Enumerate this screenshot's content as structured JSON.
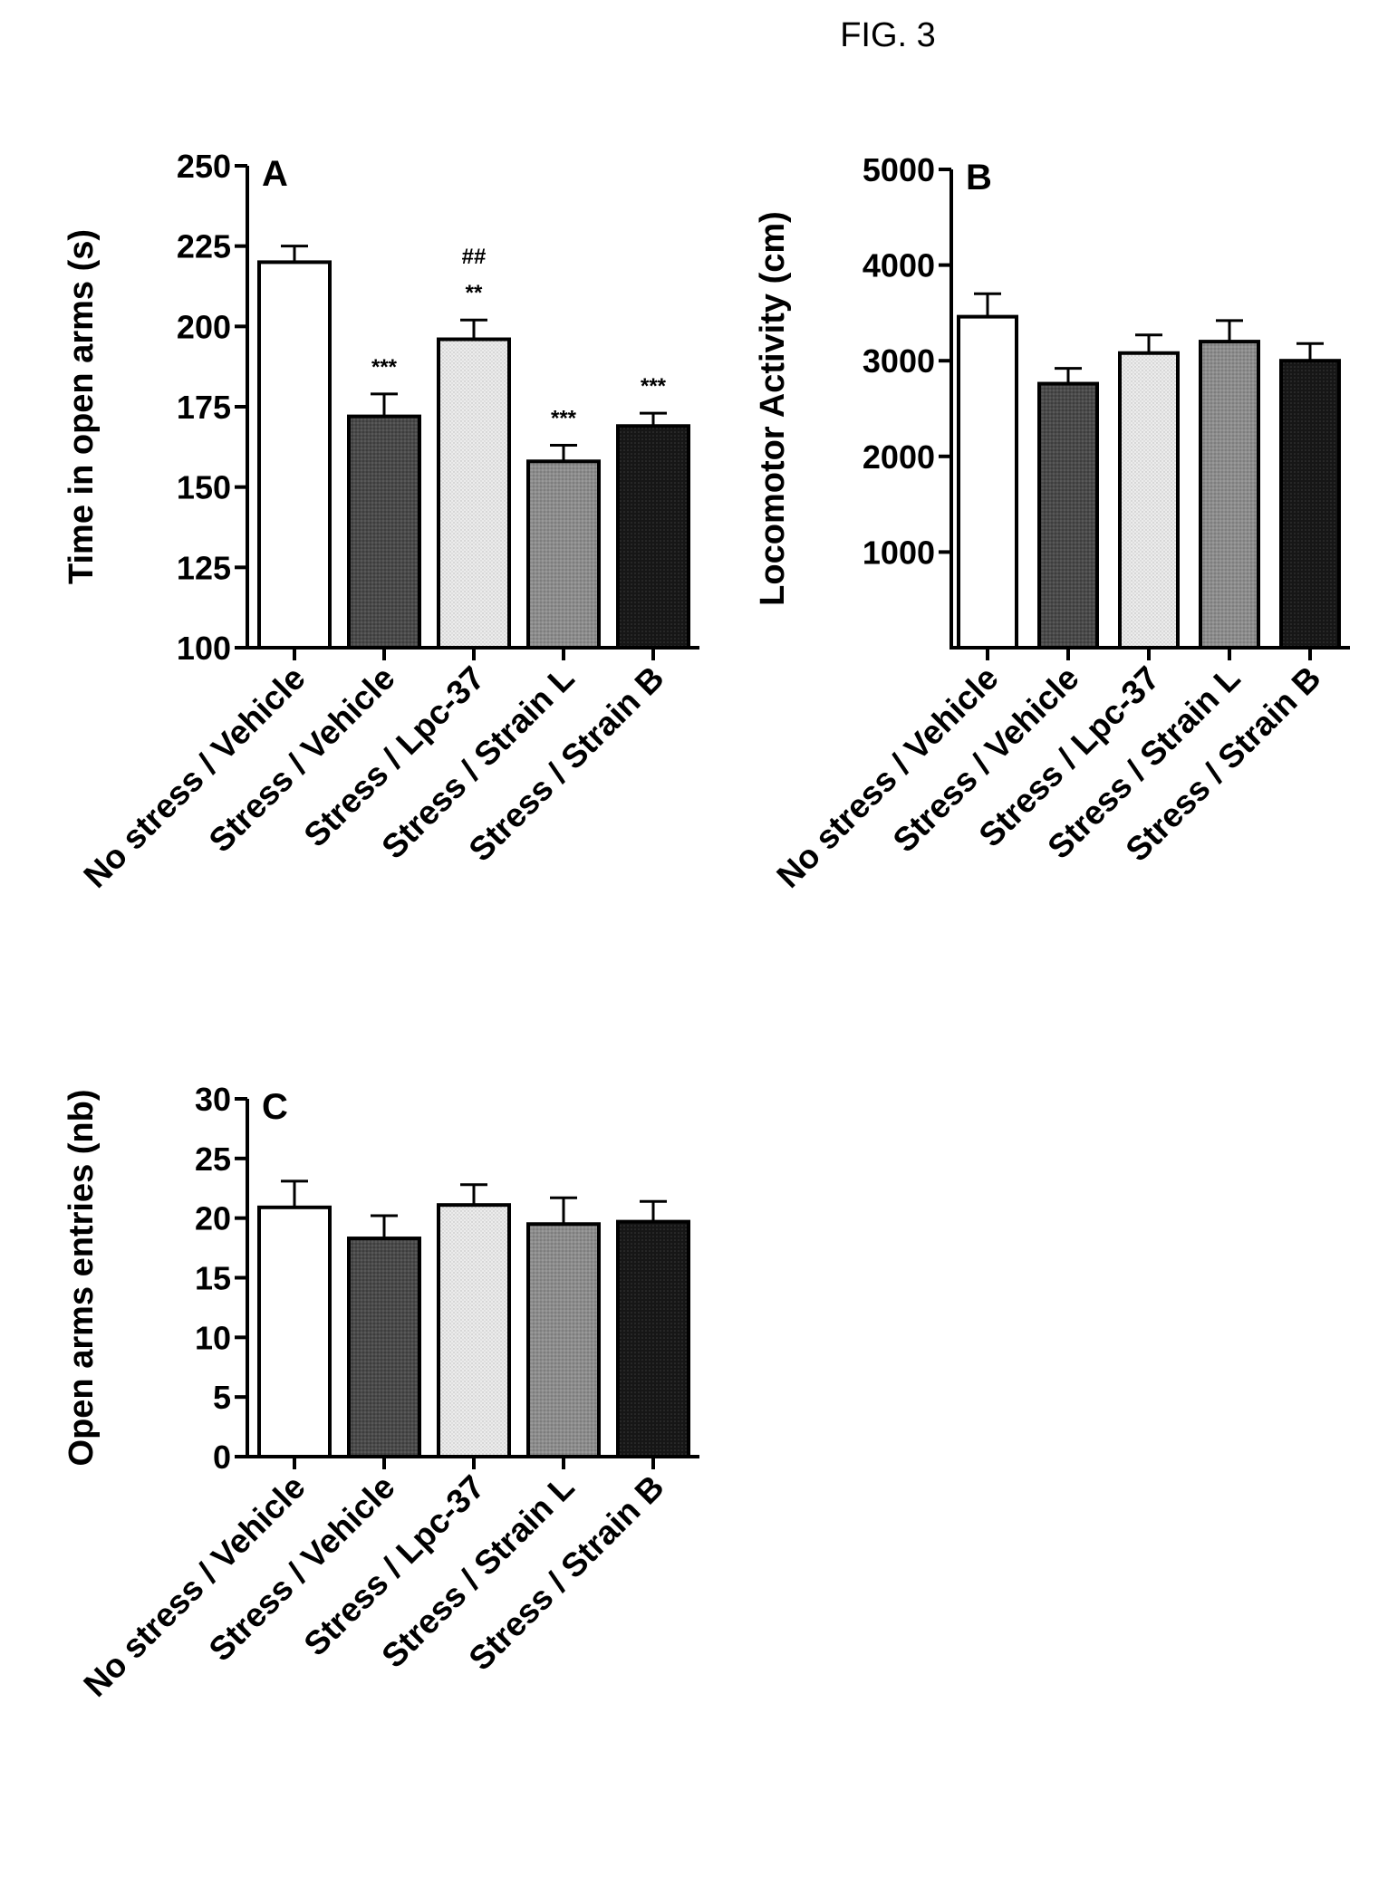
{
  "figure": {
    "title": "FIG. 3"
  },
  "colors": {
    "bars": [
      "#ffffff",
      "#4a4a4a",
      "#e6e6e6",
      "#8c8c8c",
      "#161616"
    ],
    "ink": "#000000"
  },
  "chart_data": [
    {
      "type": "bar",
      "panel_label": "A",
      "title": "",
      "xlabel": "",
      "ylabel": "Time in open arms (s)",
      "ylim": [
        100,
        250
      ],
      "yticks": [
        100,
        125,
        150,
        175,
        200,
        225,
        250
      ],
      "categories": [
        "No stress / Vehicle",
        "Stress / Vehicle",
        "Stress / Lpc-37",
        "Stress / Strain L",
        "Stress / Strain B"
      ],
      "values": [
        220,
        172,
        196,
        158,
        169
      ],
      "errors": [
        5,
        7,
        6,
        5,
        4
      ],
      "annotations": [
        {
          "bar": 1,
          "lines": [
            "***"
          ]
        },
        {
          "bar": 2,
          "lines": [
            "##",
            "**"
          ]
        },
        {
          "bar": 3,
          "lines": [
            "***"
          ]
        },
        {
          "bar": 4,
          "lines": [
            "***"
          ]
        }
      ],
      "grid": false,
      "legend": "none"
    },
    {
      "type": "bar",
      "panel_label": "B",
      "title": "",
      "xlabel": "",
      "ylabel": "Locomotor Activity (cm)",
      "ylim": [
        0,
        5000
      ],
      "yticks": [
        1000,
        2000,
        3000,
        4000,
        5000
      ],
      "categories": [
        "No stress / Vehicle",
        "Stress / Vehicle",
        "Stress / Lpc-37",
        "Stress / Strain L",
        "Stress / Strain B"
      ],
      "values": [
        3460,
        2760,
        3080,
        3200,
        3000
      ],
      "errors": [
        240,
        160,
        190,
        220,
        180
      ],
      "annotations": [],
      "grid": false,
      "legend": "none"
    },
    {
      "type": "bar",
      "panel_label": "C",
      "title": "",
      "xlabel": "",
      "ylabel": "Open arms entries (nb)",
      "ylim": [
        0,
        30
      ],
      "yticks": [
        0,
        5,
        10,
        15,
        20,
        25,
        30
      ],
      "categories": [
        "No stress / Vehicle",
        "Stress / Vehicle",
        "Stress / Lpc-37",
        "Stress / Strain L",
        "Stress / Strain B"
      ],
      "values": [
        20.9,
        18.3,
        21.1,
        19.5,
        19.7
      ],
      "errors": [
        2.2,
        1.9,
        1.7,
        2.2,
        1.7
      ],
      "annotations": [],
      "grid": false,
      "legend": "none"
    }
  ]
}
